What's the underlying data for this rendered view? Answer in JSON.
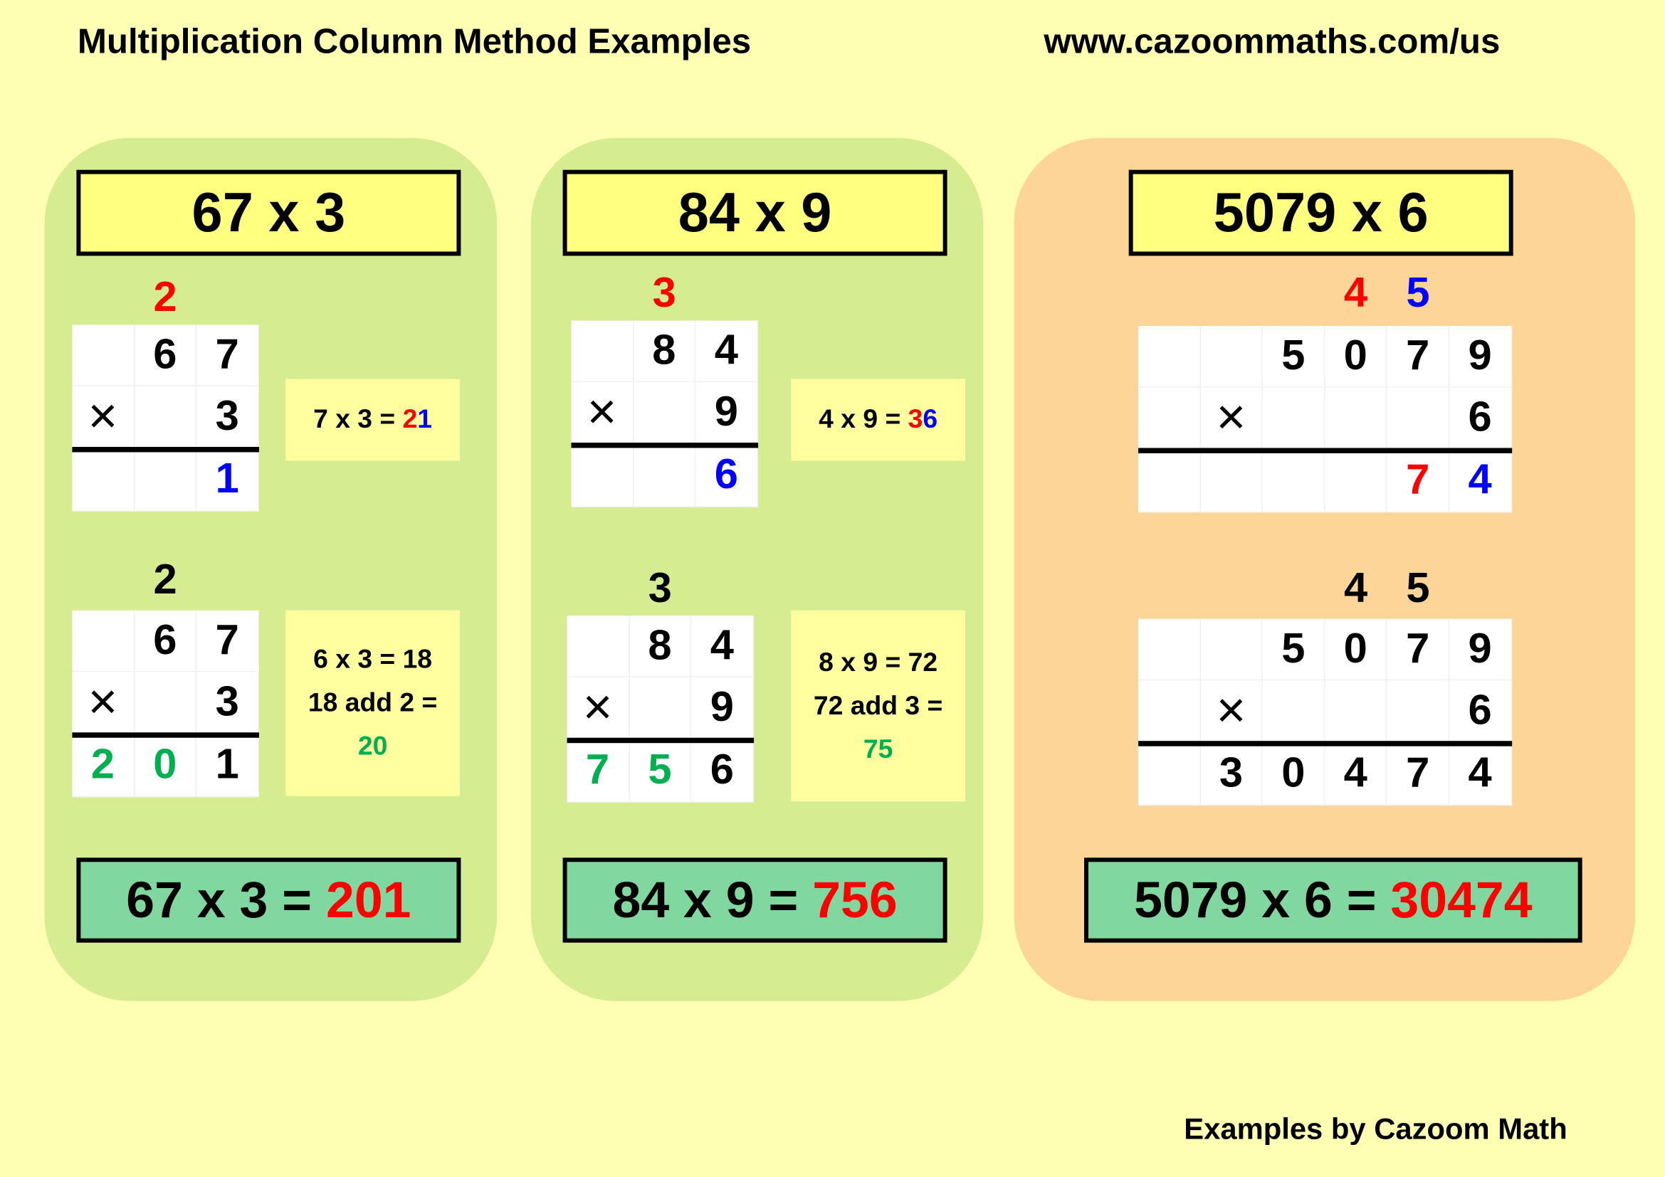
{
  "header": {
    "title": "Multiplication Column Method Examples",
    "url": "www.cazoommaths.com/us"
  },
  "footer": "Examples by Cazoom Math",
  "colors": {
    "background": "#ffffb3",
    "panel_green": "#d6ec91",
    "panel_orange": "#fdd598",
    "red": "#ff0000",
    "blue": "#0000ff",
    "green": "#00b050",
    "answer_box": "#80d8a0",
    "problem_box": "#ffff80"
  },
  "panels": [
    {
      "problem": "67 x 3",
      "answer_lhs": "67 x 3 = ",
      "answer_value": "201",
      "steps": [
        {
          "carries": [
            {
              "col": 1,
              "text": "2",
              "color": "red"
            }
          ],
          "rows": [
            [
              {
                "t": ""
              },
              {
                "t": "6"
              },
              {
                "t": "7"
              }
            ],
            [
              {
                "t": "×"
              },
              {
                "t": ""
              },
              {
                "t": "3"
              }
            ],
            [
              {
                "t": ""
              },
              {
                "t": ""
              },
              {
                "t": "1",
                "color": "blue"
              }
            ]
          ],
          "info": [
            [
              {
                "t": "7 x 3 = "
              },
              {
                "t": "2",
                "color": "red"
              },
              {
                "t": "1",
                "color": "blue"
              }
            ]
          ]
        },
        {
          "carries": [
            {
              "col": 1,
              "text": "2",
              "color": "black"
            }
          ],
          "rows": [
            [
              {
                "t": ""
              },
              {
                "t": "6"
              },
              {
                "t": "7"
              }
            ],
            [
              {
                "t": "×"
              },
              {
                "t": ""
              },
              {
                "t": "3"
              }
            ],
            [
              {
                "t": "2",
                "color": "green"
              },
              {
                "t": "0",
                "color": "green"
              },
              {
                "t": "1"
              }
            ]
          ],
          "info": [
            [
              {
                "t": "6 x 3 = 18"
              }
            ],
            [
              {
                "t": "18 add 2 ="
              }
            ],
            [
              {
                "t": "20",
                "color": "green"
              }
            ]
          ]
        }
      ]
    },
    {
      "problem": "84 x 9",
      "answer_lhs": "84 x 9 = ",
      "answer_value": "756",
      "steps": [
        {
          "carries": [
            {
              "col": 1,
              "text": "3",
              "color": "red"
            }
          ],
          "rows": [
            [
              {
                "t": ""
              },
              {
                "t": "8"
              },
              {
                "t": "4"
              }
            ],
            [
              {
                "t": "×"
              },
              {
                "t": ""
              },
              {
                "t": "9"
              }
            ],
            [
              {
                "t": ""
              },
              {
                "t": ""
              },
              {
                "t": "6",
                "color": "blue"
              }
            ]
          ],
          "info": [
            [
              {
                "t": "4 x 9 = "
              },
              {
                "t": "3",
                "color": "red"
              },
              {
                "t": "6",
                "color": "blue"
              }
            ]
          ]
        },
        {
          "carries": [
            {
              "col": 1,
              "text": "3",
              "color": "black"
            }
          ],
          "rows": [
            [
              {
                "t": ""
              },
              {
                "t": "8"
              },
              {
                "t": "4"
              }
            ],
            [
              {
                "t": "×"
              },
              {
                "t": ""
              },
              {
                "t": "9"
              }
            ],
            [
              {
                "t": "7",
                "color": "green"
              },
              {
                "t": "5",
                "color": "green"
              },
              {
                "t": "6"
              }
            ]
          ],
          "info": [
            [
              {
                "t": "8 x 9 = 72"
              }
            ],
            [
              {
                "t": "72 add 3 ="
              }
            ],
            [
              {
                "t": "75",
                "color": "green"
              }
            ]
          ]
        }
      ]
    },
    {
      "problem": "5079 x 6",
      "answer_lhs": "5079 x 6 = ",
      "answer_value": "30474",
      "steps": [
        {
          "carries": [
            {
              "col": 3,
              "text": "4",
              "color": "red"
            },
            {
              "col": 4,
              "text": "5",
              "color": "blue"
            }
          ],
          "rows": [
            [
              {
                "t": ""
              },
              {
                "t": ""
              },
              {
                "t": "5"
              },
              {
                "t": "0"
              },
              {
                "t": "7"
              },
              {
                "t": "9"
              }
            ],
            [
              {
                "t": ""
              },
              {
                "t": "×"
              },
              {
                "t": ""
              },
              {
                "t": ""
              },
              {
                "t": ""
              },
              {
                "t": "6"
              }
            ],
            [
              {
                "t": ""
              },
              {
                "t": ""
              },
              {
                "t": ""
              },
              {
                "t": ""
              },
              {
                "t": "7",
                "color": "red"
              },
              {
                "t": "4",
                "color": "blue"
              }
            ]
          ],
          "info": []
        },
        {
          "carries": [
            {
              "col": 3,
              "text": "4",
              "color": "black"
            },
            {
              "col": 4,
              "text": "5",
              "color": "black"
            }
          ],
          "rows": [
            [
              {
                "t": ""
              },
              {
                "t": ""
              },
              {
                "t": "5"
              },
              {
                "t": "0"
              },
              {
                "t": "7"
              },
              {
                "t": "9"
              }
            ],
            [
              {
                "t": ""
              },
              {
                "t": "×"
              },
              {
                "t": ""
              },
              {
                "t": ""
              },
              {
                "t": ""
              },
              {
                "t": "6"
              }
            ],
            [
              {
                "t": ""
              },
              {
                "t": "3"
              },
              {
                "t": "0"
              },
              {
                "t": "4"
              },
              {
                "t": "7"
              },
              {
                "t": "4"
              }
            ]
          ],
          "info": []
        }
      ]
    }
  ]
}
